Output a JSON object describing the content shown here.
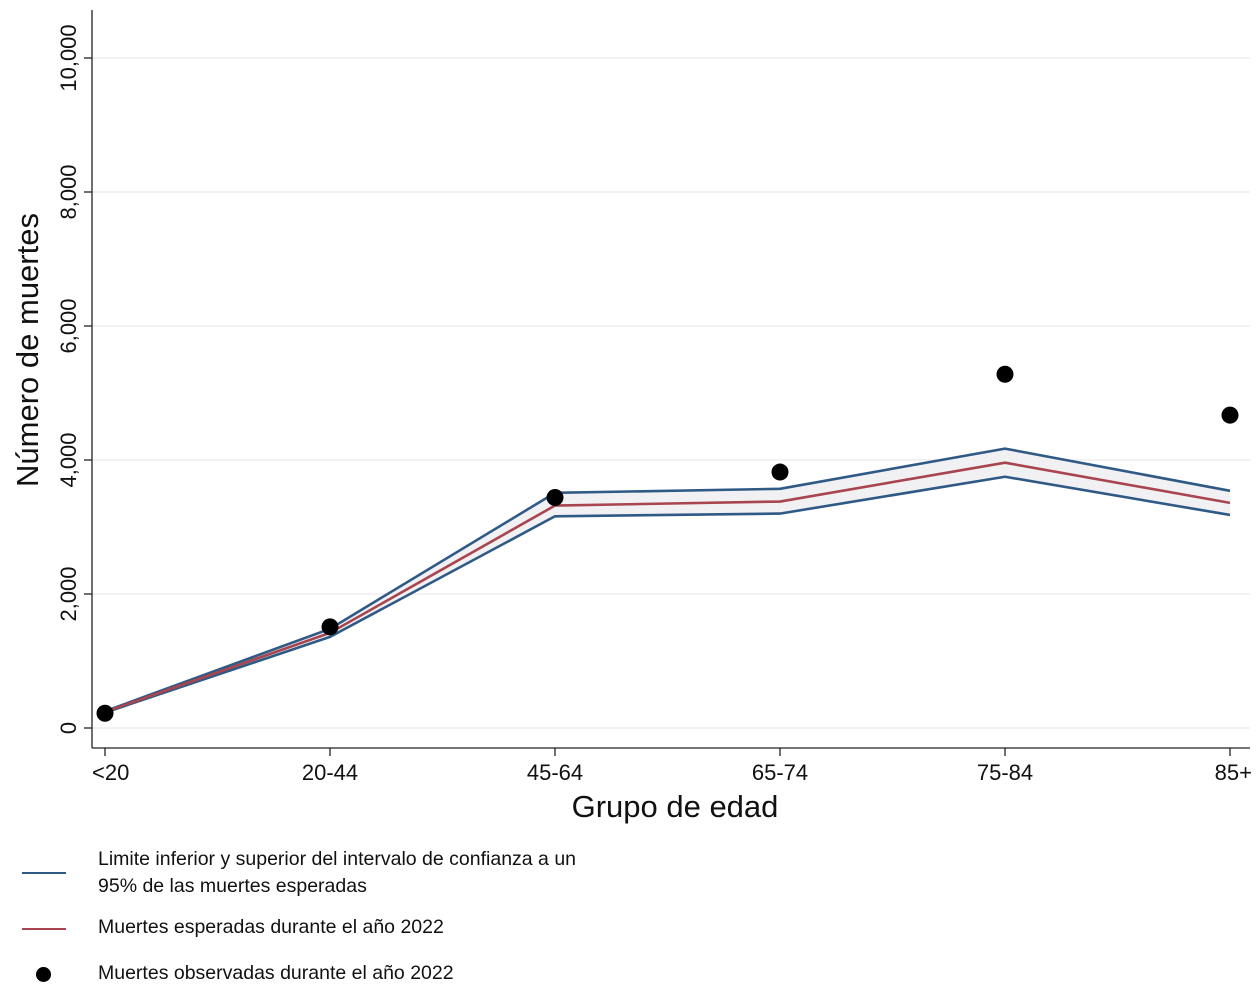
{
  "chart_data": {
    "type": "line",
    "categories": [
      "<20",
      "20-44",
      "45-64",
      "65-74",
      "75-84",
      "85+"
    ],
    "series": [
      {
        "name": "Muertes esperadas durante el año 2022",
        "kind": "line",
        "color": "#a8454f",
        "values": [
          240,
          1420,
          3320,
          3380,
          3960,
          3360
        ]
      },
      {
        "name": "Limite inferior y superior del intervalo de confianza a un 95% de las muertes esperadas",
        "kind": "ci",
        "color": "#2f5a86",
        "lower": [
          230,
          1360,
          3160,
          3200,
          3750,
          3180
        ],
        "upper": [
          250,
          1480,
          3510,
          3570,
          4170,
          3540
        ]
      },
      {
        "name": "Muertes observadas durante el año 2022",
        "kind": "scatter",
        "color": "#000000",
        "values": [
          220,
          1510,
          3440,
          3820,
          5280,
          4670
        ]
      }
    ],
    "band_fill": "#f1f1f3",
    "yticks": [
      "0",
      "2,000",
      "4,000",
      "6,000",
      "8,000",
      "10,000"
    ],
    "ylim": [
      0,
      10800
    ],
    "xlabel": "Grupo de edad",
    "ylabel": "Número de muertes",
    "grid": true,
    "legend_position": "bottom"
  },
  "legend": {
    "ci_line1": "Limite inferior y superior del intervalo de confianza a un",
    "ci_line2": "95% de las muertes esperadas",
    "expected": "Muertes esperadas durante el año 2022",
    "observed": "Muertes observadas durante el año 2022"
  }
}
